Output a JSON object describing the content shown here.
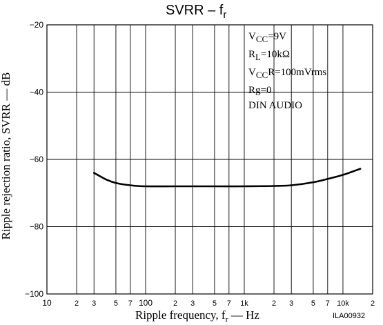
{
  "chart_data": {
    "type": "line",
    "title": {
      "main": "SVRR  –  f",
      "sub": "r"
    },
    "xlabel": {
      "prefix": "Ripple frequency, f",
      "sub": "r",
      "suffix": " — Hz"
    },
    "ylabel": "Ripple rejection ratio, SVRR — dB",
    "xscale": "log",
    "xlim": [
      10,
      20000
    ],
    "ylim": [
      -100,
      -20
    ],
    "grid": true,
    "x_ticks": [
      {
        "v": 10,
        "label": "10",
        "size": "major"
      },
      {
        "v": 20,
        "label": "2",
        "size": "minor"
      },
      {
        "v": 30,
        "label": "3",
        "size": "minor"
      },
      {
        "v": 50,
        "label": "5",
        "size": "minor"
      },
      {
        "v": 70,
        "label": "7",
        "size": "minor"
      },
      {
        "v": 100,
        "label": "100",
        "size": "major"
      },
      {
        "v": 200,
        "label": "2",
        "size": "minor"
      },
      {
        "v": 300,
        "label": "3",
        "size": "minor"
      },
      {
        "v": 500,
        "label": "5",
        "size": "minor"
      },
      {
        "v": 700,
        "label": "7",
        "size": "minor"
      },
      {
        "v": 1000,
        "label": "1k",
        "size": "minor"
      },
      {
        "v": 2000,
        "label": "2",
        "size": "minor"
      },
      {
        "v": 3000,
        "label": "3",
        "size": "minor"
      },
      {
        "v": 5000,
        "label": "5",
        "size": "minor"
      },
      {
        "v": 7000,
        "label": "7",
        "size": "minor"
      },
      {
        "v": 10000,
        "label": "10k",
        "size": "minor"
      },
      {
        "v": 20000,
        "label": "2",
        "size": "minor"
      }
    ],
    "y_ticks": [
      -20,
      -40,
      -60,
      -80,
      -100
    ],
    "series": [
      {
        "x": [
          30,
          40,
          50,
          70,
          100,
          200,
          500,
          1000,
          2000,
          3000,
          5000,
          7000,
          10000,
          15000
        ],
        "y": [
          -64,
          -66,
          -67,
          -67.7,
          -68,
          -68,
          -68,
          -68,
          -67.9,
          -67.7,
          -66.8,
          -65.8,
          -64.6,
          -62.8
        ]
      }
    ],
    "legend_lines": [
      {
        "main": "V",
        "sub": "CC",
        "tail": "=9V"
      },
      {
        "main": "R",
        "sub": "L",
        "tail": "=10kΩ"
      },
      {
        "main": "V",
        "sub": "CC",
        "tail": "R=100mVrms"
      },
      {
        "main": "Rg=0",
        "sub": "",
        "tail": ""
      },
      {
        "main": "DIN AUDIO",
        "sub": "",
        "tail": ""
      }
    ],
    "figure_id": "ILA00932",
    "colors": {
      "line": "#000000",
      "grid": "#000000",
      "background": "#ffffff"
    }
  }
}
